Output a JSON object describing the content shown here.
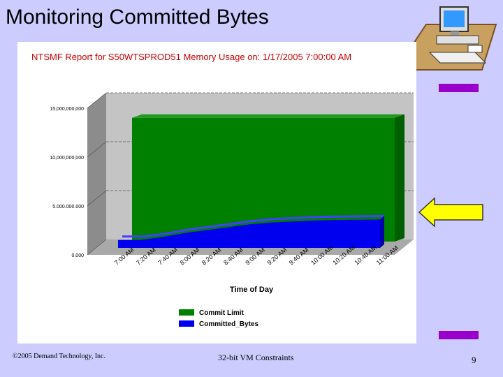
{
  "slide": {
    "title": "Monitoring Committed Bytes",
    "footer_left": "©2005 Demand Technology, Inc.",
    "footer_center": "32-bit VM Constraints",
    "page_number": "9"
  },
  "icons": {
    "decoration": "computer-icon",
    "pointer": "arrow-right-icon"
  },
  "colors": {
    "background": "#ccccff",
    "accent_bar": "#9900cc",
    "arrow_fill": "#ffff00",
    "chart_title": "#cc0000",
    "commit_limit": "#008000",
    "committed_bytes": "#0000ee"
  },
  "chart_data": {
    "type": "area",
    "title": "NTSMF Report for S50WTSPROD51   Memory Usage on: 1/17/2005 7:00:00 AM",
    "xlabel": "Time of Day",
    "ylabel": "",
    "ylim": [
      0,
      15000000000
    ],
    "yticks": [
      {
        "value": 0,
        "label": "0.000"
      },
      {
        "value": 5000000000,
        "label": "5.000.000.000"
      },
      {
        "value": 10000000000,
        "label": "10,000,000,000"
      },
      {
        "value": 15000000000,
        "label": "15,000,000,000"
      }
    ],
    "categories": [
      "7:00 AM",
      "7:20 AM",
      "7:40 AM",
      "8:00 AM",
      "8:20 AM",
      "8:40 AM",
      "9:00 AM",
      "9:20 AM",
      "9:40 AM",
      "10:00 AM",
      "10:20 AM",
      "10:40 AM",
      "11:00 AM"
    ],
    "series": [
      {
        "name": "Commit  Limit",
        "values": [
          12800000000,
          12800000000,
          12800000000,
          12800000000,
          12800000000,
          12800000000,
          12800000000,
          12800000000,
          12800000000,
          12800000000,
          12800000000,
          12800000000,
          12800000000
        ]
      },
      {
        "name": "Committed_Bytes",
        "values": [
          800000000,
          800000000,
          1100000000,
          1500000000,
          1800000000,
          2100000000,
          2400000000,
          2600000000,
          2700000000,
          2800000000,
          2850000000,
          2880000000,
          2900000000
        ]
      }
    ],
    "grid": true,
    "legend": "bottom"
  }
}
